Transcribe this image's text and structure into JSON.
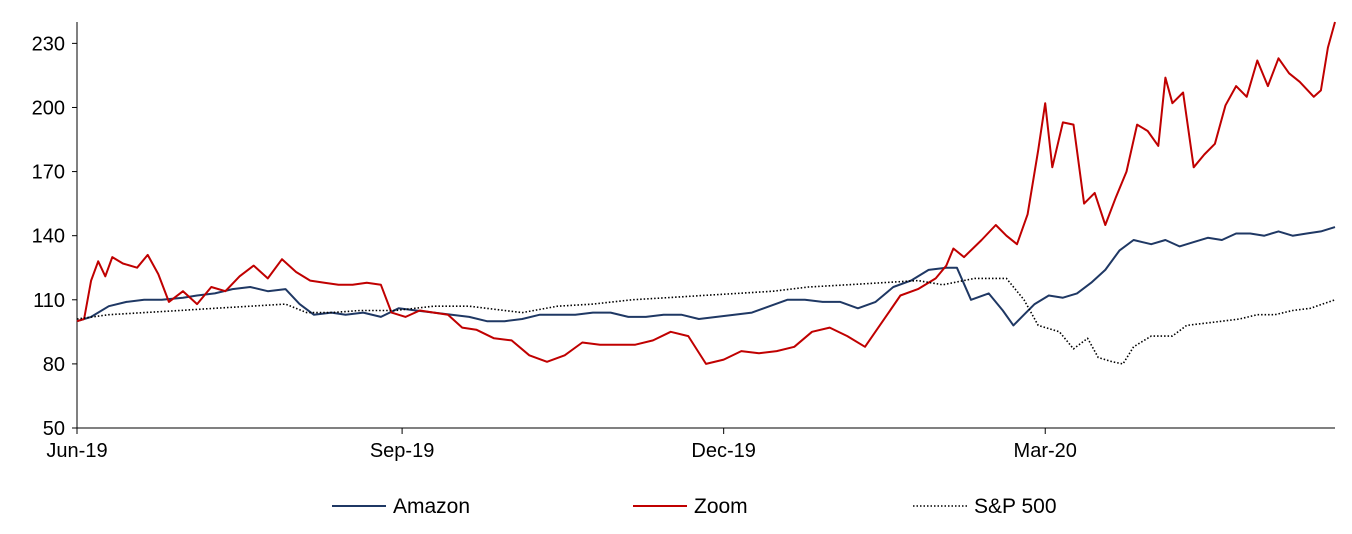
{
  "chart_data": {
    "type": "line",
    "title": "",
    "xlabel": "",
    "ylabel": "",
    "ylim": [
      50,
      240
    ],
    "yticks": [
      50,
      80,
      110,
      140,
      170,
      200,
      230
    ],
    "xticks": [
      {
        "label": "Jun-19",
        "x": "2019-06-01"
      },
      {
        "label": "Sep-19",
        "x": "2019-09-01"
      },
      {
        "label": "Dec-19",
        "x": "2019-12-01"
      },
      {
        "label": "Mar-20",
        "x": "2020-03-01"
      }
    ],
    "xlim": [
      "2019-06-01",
      "2020-05-22"
    ],
    "grid": false,
    "legend_position": "bottom",
    "series": [
      {
        "name": "Amazon",
        "color": "#1f3864",
        "style": "solid",
        "points": [
          [
            "2019-06-01",
            100
          ],
          [
            "2019-06-05",
            102
          ],
          [
            "2019-06-10",
            107
          ],
          [
            "2019-06-15",
            109
          ],
          [
            "2019-06-20",
            110
          ],
          [
            "2019-06-25",
            110
          ],
          [
            "2019-07-01",
            111
          ],
          [
            "2019-07-05",
            112
          ],
          [
            "2019-07-10",
            113
          ],
          [
            "2019-07-15",
            115
          ],
          [
            "2019-07-20",
            116
          ],
          [
            "2019-07-25",
            114
          ],
          [
            "2019-07-30",
            115
          ],
          [
            "2019-08-03",
            108
          ],
          [
            "2019-08-07",
            103
          ],
          [
            "2019-08-12",
            104
          ],
          [
            "2019-08-16",
            103
          ],
          [
            "2019-08-21",
            104
          ],
          [
            "2019-08-26",
            102
          ],
          [
            "2019-08-31",
            106
          ],
          [
            "2019-09-05",
            105
          ],
          [
            "2019-09-10",
            104
          ],
          [
            "2019-09-15",
            103
          ],
          [
            "2019-09-20",
            102
          ],
          [
            "2019-09-25",
            100
          ],
          [
            "2019-09-30",
            100
          ],
          [
            "2019-10-05",
            101
          ],
          [
            "2019-10-10",
            103
          ],
          [
            "2019-10-15",
            103
          ],
          [
            "2019-10-20",
            103
          ],
          [
            "2019-10-25",
            104
          ],
          [
            "2019-10-30",
            104
          ],
          [
            "2019-11-04",
            102
          ],
          [
            "2019-11-09",
            102
          ],
          [
            "2019-11-14",
            103
          ],
          [
            "2019-11-19",
            103
          ],
          [
            "2019-11-24",
            101
          ],
          [
            "2019-11-29",
            102
          ],
          [
            "2019-12-04",
            103
          ],
          [
            "2019-12-09",
            104
          ],
          [
            "2019-12-14",
            107
          ],
          [
            "2019-12-19",
            110
          ],
          [
            "2019-12-24",
            110
          ],
          [
            "2019-12-29",
            109
          ],
          [
            "2020-01-03",
            109
          ],
          [
            "2020-01-08",
            106
          ],
          [
            "2020-01-13",
            109
          ],
          [
            "2020-01-18",
            116
          ],
          [
            "2020-01-23",
            119
          ],
          [
            "2020-01-28",
            124
          ],
          [
            "2020-02-02",
            125
          ],
          [
            "2020-02-05",
            125
          ],
          [
            "2020-02-09",
            110
          ],
          [
            "2020-02-14",
            113
          ],
          [
            "2020-02-18",
            105
          ],
          [
            "2020-02-21",
            98
          ],
          [
            "2020-02-24",
            103
          ],
          [
            "2020-02-27",
            108
          ],
          [
            "2020-03-02",
            112
          ],
          [
            "2020-03-06",
            111
          ],
          [
            "2020-03-10",
            113
          ],
          [
            "2020-03-14",
            118
          ],
          [
            "2020-03-18",
            124
          ],
          [
            "2020-03-22",
            133
          ],
          [
            "2020-03-26",
            138
          ],
          [
            "2020-03-31",
            136
          ],
          [
            "2020-04-04",
            138
          ],
          [
            "2020-04-08",
            135
          ],
          [
            "2020-04-12",
            137
          ],
          [
            "2020-04-16",
            139
          ],
          [
            "2020-04-20",
            138
          ],
          [
            "2020-04-24",
            141
          ],
          [
            "2020-04-28",
            141
          ],
          [
            "2020-05-02",
            140
          ],
          [
            "2020-05-06",
            142
          ],
          [
            "2020-05-10",
            140
          ],
          [
            "2020-05-14",
            141
          ],
          [
            "2020-05-18",
            142
          ],
          [
            "2020-05-22",
            144
          ]
        ]
      },
      {
        "name": "Zoom",
        "color": "#c00000",
        "style": "solid",
        "points": [
          [
            "2019-06-01",
            100
          ],
          [
            "2019-06-03",
            101
          ],
          [
            "2019-06-05",
            119
          ],
          [
            "2019-06-07",
            128
          ],
          [
            "2019-06-09",
            121
          ],
          [
            "2019-06-11",
            130
          ],
          [
            "2019-06-14",
            127
          ],
          [
            "2019-06-18",
            125
          ],
          [
            "2019-06-21",
            131
          ],
          [
            "2019-06-24",
            122
          ],
          [
            "2019-06-27",
            109
          ],
          [
            "2019-07-01",
            114
          ],
          [
            "2019-07-05",
            108
          ],
          [
            "2019-07-09",
            116
          ],
          [
            "2019-07-13",
            114
          ],
          [
            "2019-07-17",
            121
          ],
          [
            "2019-07-21",
            126
          ],
          [
            "2019-07-25",
            120
          ],
          [
            "2019-07-29",
            129
          ],
          [
            "2019-08-02",
            123
          ],
          [
            "2019-08-06",
            119
          ],
          [
            "2019-08-10",
            118
          ],
          [
            "2019-08-14",
            117
          ],
          [
            "2019-08-18",
            117
          ],
          [
            "2019-08-22",
            118
          ],
          [
            "2019-08-26",
            117
          ],
          [
            "2019-08-29",
            104
          ],
          [
            "2019-09-02",
            102
          ],
          [
            "2019-09-06",
            105
          ],
          [
            "2019-09-10",
            104
          ],
          [
            "2019-09-14",
            103
          ],
          [
            "2019-09-18",
            97
          ],
          [
            "2019-09-22",
            96
          ],
          [
            "2019-09-27",
            92
          ],
          [
            "2019-10-02",
            91
          ],
          [
            "2019-10-07",
            84
          ],
          [
            "2019-10-12",
            81
          ],
          [
            "2019-10-17",
            84
          ],
          [
            "2019-10-22",
            90
          ],
          [
            "2019-10-27",
            89
          ],
          [
            "2019-11-01",
            89
          ],
          [
            "2019-11-06",
            89
          ],
          [
            "2019-11-11",
            91
          ],
          [
            "2019-11-16",
            95
          ],
          [
            "2019-11-21",
            93
          ],
          [
            "2019-11-26",
            80
          ],
          [
            "2019-12-01",
            82
          ],
          [
            "2019-12-06",
            86
          ],
          [
            "2019-12-11",
            85
          ],
          [
            "2019-12-16",
            86
          ],
          [
            "2019-12-21",
            88
          ],
          [
            "2019-12-26",
            95
          ],
          [
            "2019-12-31",
            97
          ],
          [
            "2020-01-05",
            93
          ],
          [
            "2020-01-10",
            88
          ],
          [
            "2020-01-15",
            100
          ],
          [
            "2020-01-20",
            112
          ],
          [
            "2020-01-25",
            115
          ],
          [
            "2020-01-30",
            120
          ],
          [
            "2020-02-02",
            126
          ],
          [
            "2020-02-04",
            134
          ],
          [
            "2020-02-07",
            130
          ],
          [
            "2020-02-12",
            138
          ],
          [
            "2020-02-16",
            145
          ],
          [
            "2020-02-19",
            140
          ],
          [
            "2020-02-22",
            136
          ],
          [
            "2020-02-25",
            150
          ],
          [
            "2020-02-28",
            180
          ],
          [
            "2020-03-01",
            202
          ],
          [
            "2020-03-03",
            172
          ],
          [
            "2020-03-06",
            193
          ],
          [
            "2020-03-09",
            192
          ],
          [
            "2020-03-12",
            155
          ],
          [
            "2020-03-15",
            160
          ],
          [
            "2020-03-18",
            145
          ],
          [
            "2020-03-21",
            158
          ],
          [
            "2020-03-24",
            170
          ],
          [
            "2020-03-27",
            192
          ],
          [
            "2020-03-30",
            189
          ],
          [
            "2020-04-02",
            182
          ],
          [
            "2020-04-04",
            214
          ],
          [
            "2020-04-06",
            202
          ],
          [
            "2020-04-09",
            207
          ],
          [
            "2020-04-12",
            172
          ],
          [
            "2020-04-15",
            178
          ],
          [
            "2020-04-18",
            183
          ],
          [
            "2020-04-21",
            201
          ],
          [
            "2020-04-24",
            210
          ],
          [
            "2020-04-27",
            205
          ],
          [
            "2020-04-30",
            222
          ],
          [
            "2020-05-03",
            210
          ],
          [
            "2020-05-06",
            223
          ],
          [
            "2020-05-09",
            216
          ],
          [
            "2020-05-12",
            212
          ],
          [
            "2020-05-16",
            205
          ],
          [
            "2020-05-18",
            208
          ],
          [
            "2020-05-20",
            228
          ],
          [
            "2020-05-22",
            240
          ]
        ]
      },
      {
        "name": "S&P 500",
        "color": "#000000",
        "style": "dotted",
        "points": [
          [
            "2019-06-01",
            101
          ],
          [
            "2019-06-10",
            103
          ],
          [
            "2019-06-20",
            104
          ],
          [
            "2019-06-30",
            105
          ],
          [
            "2019-07-10",
            106
          ],
          [
            "2019-07-20",
            107
          ],
          [
            "2019-07-30",
            108
          ],
          [
            "2019-08-05",
            104
          ],
          [
            "2019-08-12",
            104
          ],
          [
            "2019-08-20",
            105
          ],
          [
            "2019-08-30",
            105
          ],
          [
            "2019-09-10",
            107
          ],
          [
            "2019-09-20",
            107
          ],
          [
            "2019-09-30",
            105
          ],
          [
            "2019-10-05",
            104
          ],
          [
            "2019-10-15",
            107
          ],
          [
            "2019-10-25",
            108
          ],
          [
            "2019-11-05",
            110
          ],
          [
            "2019-11-15",
            111
          ],
          [
            "2019-11-25",
            112
          ],
          [
            "2019-12-05",
            113
          ],
          [
            "2019-12-15",
            114
          ],
          [
            "2019-12-25",
            116
          ],
          [
            "2020-01-05",
            117
          ],
          [
            "2020-01-15",
            118
          ],
          [
            "2020-01-25",
            119
          ],
          [
            "2020-02-01",
            117
          ],
          [
            "2020-02-10",
            120
          ],
          [
            "2020-02-19",
            120
          ],
          [
            "2020-02-24",
            110
          ],
          [
            "2020-02-28",
            98
          ],
          [
            "2020-03-05",
            95
          ],
          [
            "2020-03-09",
            87
          ],
          [
            "2020-03-13",
            92
          ],
          [
            "2020-03-16",
            83
          ],
          [
            "2020-03-20",
            81
          ],
          [
            "2020-03-23",
            80
          ],
          [
            "2020-03-26",
            88
          ],
          [
            "2020-03-31",
            93
          ],
          [
            "2020-04-06",
            93
          ],
          [
            "2020-04-10",
            98
          ],
          [
            "2020-04-15",
            99
          ],
          [
            "2020-04-20",
            100
          ],
          [
            "2020-04-25",
            101
          ],
          [
            "2020-04-30",
            103
          ],
          [
            "2020-05-05",
            103
          ],
          [
            "2020-05-10",
            105
          ],
          [
            "2020-05-15",
            106
          ],
          [
            "2020-05-22",
            110
          ]
        ]
      }
    ]
  }
}
